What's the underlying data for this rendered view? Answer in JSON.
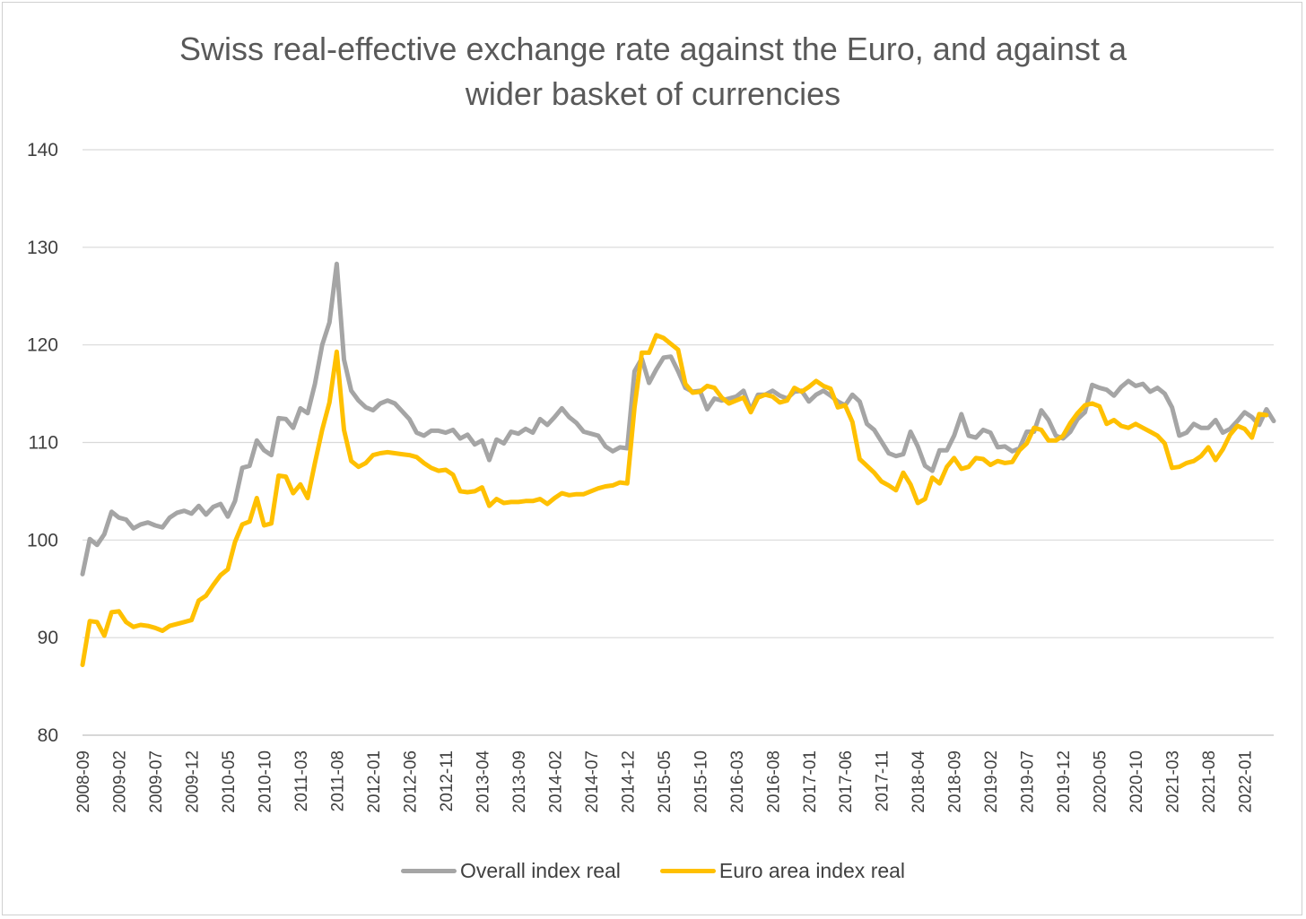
{
  "chart_data": {
    "type": "line",
    "title_line1": "Swiss real-effective exchange rate against the Euro, and against a",
    "title_line2": "wider basket of currencies",
    "xlabel": "",
    "ylabel": "",
    "ylim": [
      80,
      140
    ],
    "yticks": [
      80,
      90,
      100,
      110,
      120,
      130,
      140
    ],
    "x_start": "2008-09",
    "x_tick_labels": [
      "2008-09",
      "2009-02",
      "2009-07",
      "2009-12",
      "2010-05",
      "2010-10",
      "2011-03",
      "2011-08",
      "2012-01",
      "2012-06",
      "2012-11",
      "2013-04",
      "2013-09",
      "2014-02",
      "2014-07",
      "2014-12",
      "2015-05",
      "2015-10",
      "2016-03",
      "2016-08",
      "2017-01",
      "2017-06",
      "2017-11",
      "2018-04",
      "2018-09",
      "2019-02",
      "2019-07",
      "2019-12",
      "2020-05",
      "2020-10",
      "2021-03",
      "2021-08",
      "2022-01"
    ],
    "grid": true,
    "legend_position": "bottom",
    "series": [
      {
        "name": "Overall index real",
        "color": "#a5a5a5",
        "values": [
          96.5,
          100.1,
          99.5,
          100.6,
          102.9,
          102.3,
          102.1,
          101.2,
          101.6,
          101.8,
          101.5,
          101.3,
          102.3,
          102.8,
          103.0,
          102.7,
          103.5,
          102.6,
          103.4,
          103.7,
          102.4,
          104.0,
          107.4,
          107.6,
          110.2,
          109.2,
          108.7,
          112.5,
          112.4,
          111.5,
          113.5,
          113.0,
          116.0,
          120.0,
          122.3,
          128.3,
          118.5,
          115.3,
          114.3,
          113.6,
          113.3,
          114.0,
          114.3,
          114.0,
          113.2,
          112.4,
          111.0,
          110.7,
          111.2,
          111.2,
          111.0,
          111.3,
          110.4,
          110.8,
          109.8,
          110.2,
          108.2,
          110.3,
          109.9,
          111.1,
          110.9,
          111.4,
          111.0,
          112.4,
          111.8,
          112.6,
          113.5,
          112.6,
          112.0,
          111.1,
          110.9,
          110.7,
          109.6,
          109.1,
          109.5,
          109.4,
          117.3,
          118.6,
          116.1,
          117.5,
          118.7,
          118.8,
          117.3,
          115.6,
          115.2,
          115.3,
          113.4,
          114.5,
          114.3,
          114.5,
          114.7,
          115.3,
          113.3,
          114.9,
          114.9,
          115.3,
          114.8,
          114.5,
          115.2,
          115.3,
          114.2,
          114.9,
          115.3,
          114.8,
          114.2,
          113.8,
          114.9,
          114.2,
          111.9,
          111.3,
          110.1,
          108.9,
          108.6,
          108.8,
          111.1,
          109.6,
          107.6,
          107.1,
          109.2,
          109.2,
          110.7,
          112.9,
          110.7,
          110.5,
          111.3,
          111.0,
          109.5,
          109.6,
          109.1,
          109.4,
          111.1,
          111.1,
          113.3,
          112.3,
          110.7,
          110.4,
          111.1,
          112.4,
          113.1,
          115.9,
          115.6,
          115.4,
          114.8,
          115.7,
          116.3,
          115.8,
          116.0,
          115.2,
          115.6,
          115.0,
          113.6,
          110.7,
          111.0,
          111.9,
          111.5,
          111.5,
          112.3,
          111.0,
          111.4,
          112.2,
          113.1,
          112.6,
          111.8,
          113.4,
          112.2
        ]
      },
      {
        "name": "Euro area index real",
        "color": "#ffc000",
        "values": [
          87.2,
          91.7,
          91.6,
          90.2,
          92.6,
          92.7,
          91.6,
          91.1,
          91.3,
          91.2,
          91.0,
          90.7,
          91.2,
          91.4,
          91.6,
          91.8,
          93.8,
          94.3,
          95.4,
          96.4,
          97.0,
          99.8,
          101.6,
          101.9,
          104.3,
          101.5,
          101.7,
          106.6,
          106.5,
          104.8,
          105.7,
          104.3,
          107.9,
          111.3,
          114.1,
          119.3,
          111.3,
          108.1,
          107.5,
          107.9,
          108.7,
          108.9,
          109.0,
          108.9,
          108.8,
          108.7,
          108.5,
          107.9,
          107.4,
          107.1,
          107.2,
          106.7,
          105.0,
          104.9,
          105.0,
          105.4,
          103.5,
          104.2,
          103.8,
          103.9,
          103.9,
          104.0,
          104.0,
          104.2,
          103.7,
          104.3,
          104.8,
          104.6,
          104.7,
          104.7,
          105.0,
          105.3,
          105.5,
          105.6,
          105.9,
          105.8,
          113.6,
          119.2,
          119.2,
          121.0,
          120.7,
          120.1,
          119.5,
          116.0,
          115.1,
          115.2,
          115.8,
          115.6,
          114.6,
          114.0,
          114.3,
          114.6,
          113.1,
          114.6,
          114.9,
          114.7,
          114.1,
          114.3,
          115.6,
          115.2,
          115.7,
          116.3,
          115.8,
          115.5,
          113.6,
          113.8,
          112.1,
          108.3,
          107.6,
          106.9,
          106.0,
          105.6,
          105.1,
          106.9,
          105.7,
          103.8,
          104.2,
          106.4,
          105.8,
          107.5,
          108.4,
          107.3,
          107.5,
          108.4,
          108.3,
          107.7,
          108.1,
          107.9,
          108.0,
          109.2,
          109.9,
          111.5,
          111.3,
          110.2,
          110.2,
          110.7,
          112.0,
          113.0,
          113.8,
          114.0,
          113.7,
          111.9,
          112.3,
          111.7,
          111.5,
          111.9,
          111.5,
          111.1,
          110.7,
          109.9,
          107.4,
          107.5,
          107.9,
          108.1,
          108.6,
          109.5,
          108.2,
          109.3,
          110.8,
          111.7,
          111.4,
          110.5,
          112.9,
          112.8
        ]
      }
    ]
  }
}
